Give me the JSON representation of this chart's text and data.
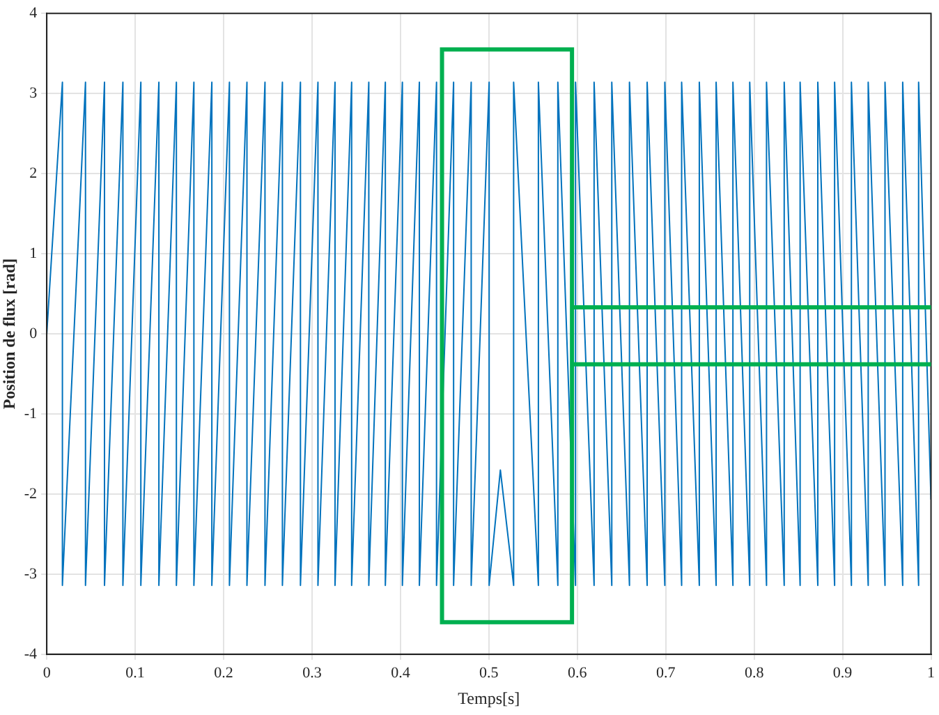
{
  "chart_data": {
    "type": "line",
    "xlabel": "Temps[s]",
    "ylabel": "Position de flux [rad]",
    "xlim": [
      0,
      1
    ],
    "xticks": [
      0,
      0.1,
      0.2,
      0.3,
      0.4,
      0.5,
      0.6,
      0.7,
      0.8,
      0.9,
      1
    ],
    "ylim": [
      -4,
      4
    ],
    "yticks": [
      -4,
      -3,
      -2,
      -1,
      0,
      1,
      2,
      3,
      4
    ],
    "ref_lines": [
      {
        "axis": "y",
        "value": 0.33,
        "color": "#00b050"
      },
      {
        "axis": "y",
        "value": -0.38,
        "color": "#00b050"
      }
    ],
    "grid": true,
    "legend": false,
    "marker": "none",
    "line_style": "solid",
    "series": [
      {
        "color": "#0072bd",
        "x": [
          0,
          0.0177,
          0.0177,
          0.0438,
          0.0438,
          0.0653,
          0.0653,
          0.0861,
          0.0861,
          0.1064,
          0.1064,
          0.1268,
          0.1268,
          0.1466,
          0.1466,
          0.1664,
          0.1664,
          0.1867,
          0.1867,
          0.2066,
          0.2066,
          0.2264,
          0.2264,
          0.2468,
          0.2468,
          0.2665,
          0.2665,
          0.2869,
          0.2869,
          0.3067,
          0.3067,
          0.326,
          0.326,
          0.3448,
          0.3448,
          0.3642,
          0.3642,
          0.3829,
          0.3829,
          0.4022,
          0.4022,
          0.4214,
          0.4214,
          0.4408,
          0.4408,
          0.4601,
          0.4601,
          0.48,
          0.48,
          0.5003,
          0.5003,
          0.513,
          0.528,
          0.528,
          0.556,
          0.556,
          0.578,
          0.578,
          0.598,
          0.598,
          0.619,
          0.619,
          0.639,
          0.639,
          0.659,
          0.659,
          0.679,
          0.679,
          0.699,
          0.699,
          0.718,
          0.718,
          0.738,
          0.738,
          0.757,
          0.757,
          0.776,
          0.776,
          0.795,
          0.795,
          0.814,
          0.814,
          0.834,
          0.834,
          0.852,
          0.852,
          0.872,
          0.872,
          0.891,
          0.891,
          0.91,
          0.91,
          0.929,
          0.929,
          0.948,
          0.948,
          0.968,
          0.968,
          0.986,
          0.986,
          1
        ],
        "values": [
          0,
          3.14,
          -3.14,
          3.14,
          -3.14,
          3.14,
          -3.14,
          3.14,
          -3.14,
          3.14,
          -3.14,
          3.14,
          -3.14,
          3.14,
          -3.14,
          3.14,
          -3.14,
          3.14,
          -3.14,
          3.14,
          -3.14,
          3.14,
          -3.14,
          3.14,
          -3.14,
          3.14,
          -3.14,
          3.14,
          -3.14,
          3.14,
          -3.14,
          3.14,
          -3.14,
          3.14,
          -3.14,
          3.14,
          -3.14,
          3.14,
          -3.14,
          3.14,
          -3.14,
          3.14,
          -3.14,
          3.14,
          -3.14,
          3.14,
          -3.14,
          3.14,
          -3.14,
          3.14,
          -3.14,
          -1.7,
          -3.14,
          3.14,
          -3.14,
          3.14,
          -3.14,
          3.14,
          -3.14,
          3.14,
          -3.14,
          3.14,
          -3.14,
          3.14,
          -3.14,
          3.14,
          -3.14,
          3.14,
          -3.14,
          3.14,
          -3.14,
          3.14,
          -3.14,
          3.14,
          -3.14,
          3.14,
          -3.14,
          3.14,
          -3.14,
          3.14,
          -3.14,
          3.14,
          -3.14,
          3.14,
          -3.14,
          3.14,
          -3.14,
          3.14,
          -3.14,
          3.14,
          -3.14,
          3.14,
          -3.14,
          3.14,
          -3.14,
          3.14,
          -3.14,
          3.14,
          -3.14,
          3.14,
          -2.07
        ]
      }
    ]
  }
}
